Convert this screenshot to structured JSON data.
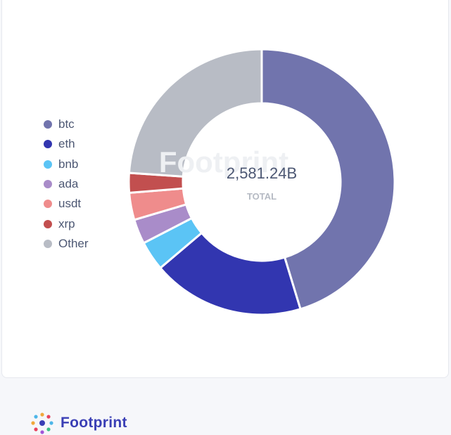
{
  "top_caption": "",
  "chart_data": {
    "type": "pie",
    "variant": "donut",
    "title": "",
    "center_value": "2,581.24B",
    "center_label": "TOTAL",
    "watermark": "Footprint",
    "legend_placement": "left",
    "categories": [
      "btc",
      "eth",
      "bnb",
      "ada",
      "usdt",
      "xrp",
      "Other"
    ],
    "values": [
      45.3,
      18.5,
      3.6,
      3.0,
      3.3,
      2.4,
      23.9
    ],
    "value_unit": "percent of total",
    "colors": [
      "#7174ad",
      "#3236b0",
      "#5bc4f5",
      "#a98cc9",
      "#ef8c8c",
      "#c24f4f",
      "#b8bcc5"
    ]
  },
  "footer": {
    "brand_name": "Footprint"
  }
}
